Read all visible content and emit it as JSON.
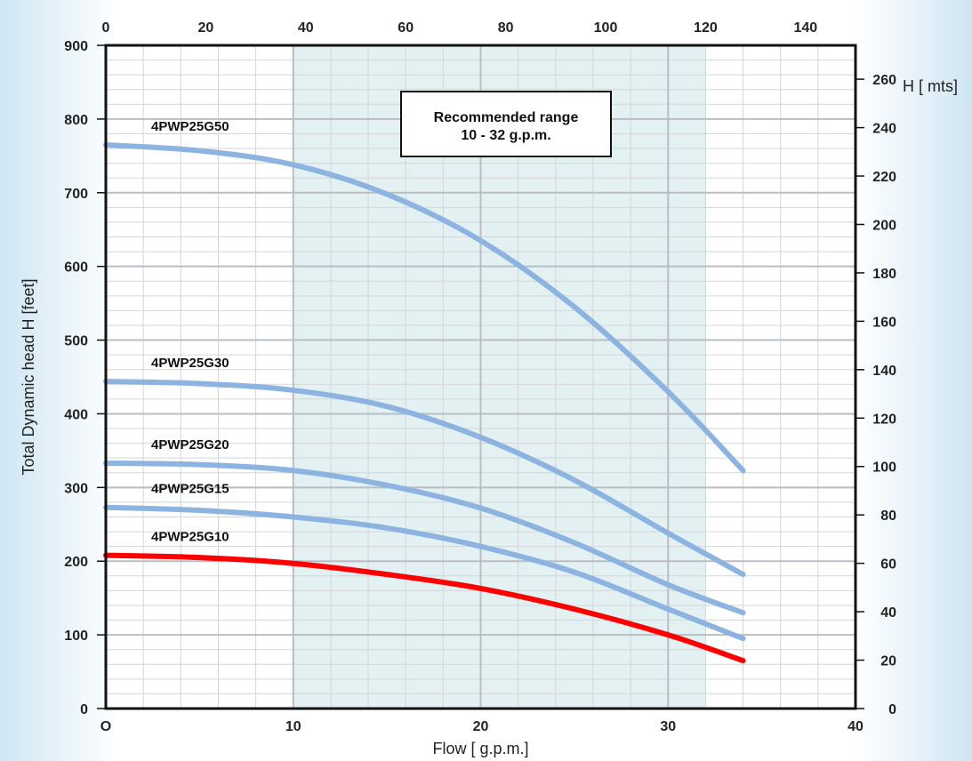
{
  "chart_data": {
    "type": "line",
    "xlabel": "Flow [ g.p.m.]",
    "ylabel": "Total Dynamic head H [feet]",
    "y2label": "H [ mts]",
    "xlim": [
      0,
      40
    ],
    "ylim": [
      0,
      900
    ],
    "x2lim": [
      0,
      150
    ],
    "y2lim": [
      0,
      274
    ],
    "x_ticks": [
      "O",
      "10",
      "20",
      "30",
      "40"
    ],
    "x2_ticks": [
      "0",
      "20",
      "40",
      "60",
      "80",
      "100",
      "120",
      "140"
    ],
    "y_ticks": [
      "0",
      "100",
      "200",
      "300",
      "400",
      "500",
      "600",
      "700",
      "800",
      "900"
    ],
    "y2_ticks": [
      "0",
      "20",
      "40",
      "60",
      "80",
      "100",
      "120",
      "140",
      "160",
      "180",
      "200",
      "220",
      "240",
      "260"
    ],
    "grid": true,
    "recommended_range": {
      "from": 10,
      "to": 32,
      "label_line1": "Recommended range",
      "label_line2": "10 - 32 g.p.m."
    },
    "series": [
      {
        "name": "4PWP25G50",
        "color": "#8db3e0",
        "x": [
          0,
          5,
          10,
          15,
          20,
          25,
          30,
          34
        ],
        "y": [
          765,
          757,
          738,
          698,
          635,
          545,
          430,
          323
        ]
      },
      {
        "name": "4PWP25G30",
        "color": "#8db3e0",
        "x": [
          0,
          5,
          10,
          15,
          20,
          25,
          30,
          34
        ],
        "y": [
          444,
          441,
          432,
          410,
          368,
          310,
          238,
          182
        ]
      },
      {
        "name": "4PWP25G20",
        "color": "#8db3e0",
        "x": [
          0,
          5,
          10,
          15,
          20,
          25,
          30,
          34
        ],
        "y": [
          333,
          331,
          323,
          303,
          272,
          225,
          168,
          130
        ]
      },
      {
        "name": "4PWP25G15",
        "color": "#8db3e0",
        "x": [
          0,
          5,
          10,
          15,
          20,
          25,
          30,
          34
        ],
        "y": [
          273,
          269,
          260,
          245,
          220,
          185,
          135,
          95
        ]
      },
      {
        "name": "4PWP25G10",
        "color": "#ff0000",
        "x": [
          0,
          5,
          10,
          15,
          20,
          25,
          30,
          34
        ],
        "y": [
          208,
          205,
          197,
          182,
          163,
          135,
          100,
          65
        ]
      }
    ]
  }
}
